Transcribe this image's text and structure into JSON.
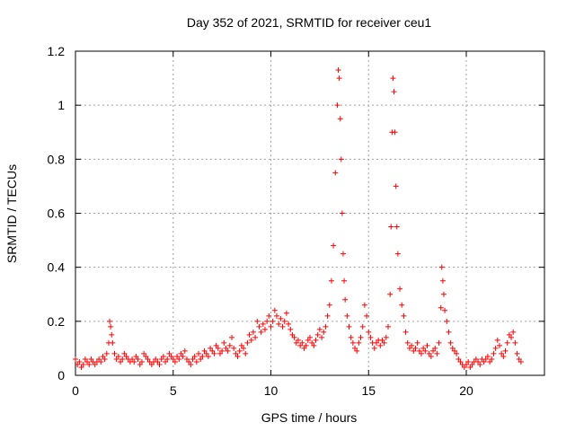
{
  "chart_data": {
    "type": "scatter",
    "title": "Day 352 of 2021, SRMTID for receiver ceu1",
    "xlabel": "GPS time / hours",
    "ylabel": "SRMTID / TECUs",
    "xlim": [
      0,
      24
    ],
    "ylim": [
      0,
      1.2
    ],
    "grid": true,
    "x_ticks": [
      0,
      5,
      10,
      15,
      20
    ],
    "x_tick_labels": [
      "0",
      "5",
      "10",
      "15",
      "20"
    ],
    "y_ticks": [
      0,
      0.2,
      0.4,
      0.6,
      0.8,
      1.0,
      1.2
    ],
    "y_tick_labels": [
      "0",
      "0.2",
      "0.4",
      "0.6",
      "0.8",
      "1",
      "1.2"
    ],
    "marker": "+",
    "colors": {
      "series": "#ff0000",
      "grid": "#a0a0a0",
      "axes": "#000000"
    },
    "series": [
      {
        "name": "SRMTID",
        "points": [
          [
            0.0,
            0.06
          ],
          [
            0.1,
            0.04
          ],
          [
            0.2,
            0.05
          ],
          [
            0.3,
            0.03
          ],
          [
            0.4,
            0.04
          ],
          [
            0.5,
            0.06
          ],
          [
            0.6,
            0.05
          ],
          [
            0.7,
            0.04
          ],
          [
            0.8,
            0.06
          ],
          [
            0.9,
            0.05
          ],
          [
            1.0,
            0.04
          ],
          [
            1.1,
            0.05
          ],
          [
            1.2,
            0.06
          ],
          [
            1.3,
            0.05
          ],
          [
            1.4,
            0.07
          ],
          [
            1.5,
            0.06
          ],
          [
            1.6,
            0.08
          ],
          [
            1.7,
            0.12
          ],
          [
            1.75,
            0.2
          ],
          [
            1.8,
            0.18
          ],
          [
            1.85,
            0.15
          ],
          [
            1.9,
            0.12
          ],
          [
            2.0,
            0.08
          ],
          [
            2.1,
            0.06
          ],
          [
            2.2,
            0.07
          ],
          [
            2.3,
            0.05
          ],
          [
            2.4,
            0.06
          ],
          [
            2.5,
            0.08
          ],
          [
            2.6,
            0.07
          ],
          [
            2.7,
            0.06
          ],
          [
            2.8,
            0.05
          ],
          [
            2.9,
            0.06
          ],
          [
            3.0,
            0.05
          ],
          [
            3.1,
            0.07
          ],
          [
            3.2,
            0.06
          ],
          [
            3.3,
            0.04
          ],
          [
            3.4,
            0.05
          ],
          [
            3.5,
            0.08
          ],
          [
            3.6,
            0.07
          ],
          [
            3.7,
            0.06
          ],
          [
            3.8,
            0.05
          ],
          [
            3.9,
            0.04
          ],
          [
            4.0,
            0.05
          ],
          [
            4.1,
            0.06
          ],
          [
            4.2,
            0.05
          ],
          [
            4.3,
            0.04
          ],
          [
            4.4,
            0.06
          ],
          [
            4.5,
            0.07
          ],
          [
            4.6,
            0.05
          ],
          [
            4.7,
            0.06
          ],
          [
            4.8,
            0.08
          ],
          [
            4.9,
            0.07
          ],
          [
            5.0,
            0.06
          ],
          [
            5.1,
            0.05
          ],
          [
            5.2,
            0.07
          ],
          [
            5.3,
            0.06
          ],
          [
            5.4,
            0.08
          ],
          [
            5.5,
            0.07
          ],
          [
            5.6,
            0.09
          ],
          [
            5.7,
            0.06
          ],
          [
            5.8,
            0.05
          ],
          [
            5.9,
            0.04
          ],
          [
            6.0,
            0.06
          ],
          [
            6.1,
            0.07
          ],
          [
            6.2,
            0.05
          ],
          [
            6.3,
            0.08
          ],
          [
            6.4,
            0.06
          ],
          [
            6.5,
            0.07
          ],
          [
            6.6,
            0.09
          ],
          [
            6.7,
            0.08
          ],
          [
            6.8,
            0.07
          ],
          [
            6.9,
            0.1
          ],
          [
            7.0,
            0.09
          ],
          [
            7.1,
            0.08
          ],
          [
            7.2,
            0.11
          ],
          [
            7.3,
            0.1
          ],
          [
            7.4,
            0.08
          ],
          [
            7.5,
            0.09
          ],
          [
            7.6,
            0.12
          ],
          [
            7.7,
            0.1
          ],
          [
            7.8,
            0.09
          ],
          [
            7.9,
            0.11
          ],
          [
            8.0,
            0.14
          ],
          [
            8.1,
            0.1
          ],
          [
            8.2,
            0.08
          ],
          [
            8.3,
            0.07
          ],
          [
            8.4,
            0.09
          ],
          [
            8.5,
            0.11
          ],
          [
            8.6,
            0.1
          ],
          [
            8.7,
            0.08
          ],
          [
            8.8,
            0.12
          ],
          [
            8.9,
            0.15
          ],
          [
            9.0,
            0.13
          ],
          [
            9.1,
            0.16
          ],
          [
            9.2,
            0.14
          ],
          [
            9.3,
            0.2
          ],
          [
            9.4,
            0.18
          ],
          [
            9.5,
            0.16
          ],
          [
            9.6,
            0.19
          ],
          [
            9.7,
            0.17
          ],
          [
            9.8,
            0.2
          ],
          [
            9.9,
            0.22
          ],
          [
            10.0,
            0.18
          ],
          [
            10.1,
            0.2
          ],
          [
            10.2,
            0.24
          ],
          [
            10.3,
            0.22
          ],
          [
            10.4,
            0.19
          ],
          [
            10.5,
            0.21
          ],
          [
            10.6,
            0.18
          ],
          [
            10.7,
            0.2
          ],
          [
            10.8,
            0.23
          ],
          [
            10.9,
            0.19
          ],
          [
            11.0,
            0.17
          ],
          [
            11.1,
            0.15
          ],
          [
            11.2,
            0.14
          ],
          [
            11.3,
            0.12
          ],
          [
            11.4,
            0.13
          ],
          [
            11.5,
            0.11
          ],
          [
            11.6,
            0.12
          ],
          [
            11.7,
            0.1
          ],
          [
            11.8,
            0.11
          ],
          [
            11.9,
            0.13
          ],
          [
            12.0,
            0.14
          ],
          [
            12.1,
            0.12
          ],
          [
            12.2,
            0.11
          ],
          [
            12.3,
            0.13
          ],
          [
            12.4,
            0.15
          ],
          [
            12.5,
            0.17
          ],
          [
            12.6,
            0.14
          ],
          [
            12.7,
            0.16
          ],
          [
            12.8,
            0.18
          ],
          [
            12.9,
            0.22
          ],
          [
            13.0,
            0.26
          ],
          [
            13.1,
            0.35
          ],
          [
            13.2,
            0.48
          ],
          [
            13.3,
            0.75
          ],
          [
            13.4,
            1.0
          ],
          [
            13.45,
            1.13
          ],
          [
            13.5,
            1.1
          ],
          [
            13.55,
            0.95
          ],
          [
            13.6,
            0.8
          ],
          [
            13.65,
            0.6
          ],
          [
            13.7,
            0.45
          ],
          [
            13.75,
            0.35
          ],
          [
            13.8,
            0.28
          ],
          [
            13.9,
            0.22
          ],
          [
            14.0,
            0.18
          ],
          [
            14.1,
            0.14
          ],
          [
            14.2,
            0.12
          ],
          [
            14.3,
            0.1
          ],
          [
            14.4,
            0.09
          ],
          [
            14.5,
            0.12
          ],
          [
            14.6,
            0.14
          ],
          [
            14.7,
            0.18
          ],
          [
            14.8,
            0.26
          ],
          [
            14.9,
            0.22
          ],
          [
            15.0,
            0.16
          ],
          [
            15.1,
            0.14
          ],
          [
            15.2,
            0.12
          ],
          [
            15.3,
            0.1
          ],
          [
            15.4,
            0.12
          ],
          [
            15.5,
            0.13
          ],
          [
            15.6,
            0.11
          ],
          [
            15.7,
            0.13
          ],
          [
            15.8,
            0.12
          ],
          [
            15.9,
            0.14
          ],
          [
            16.0,
            0.18
          ],
          [
            16.1,
            0.3
          ],
          [
            16.15,
            0.55
          ],
          [
            16.2,
            0.9
          ],
          [
            16.25,
            1.1
          ],
          [
            16.3,
            1.05
          ],
          [
            16.35,
            0.9
          ],
          [
            16.4,
            0.7
          ],
          [
            16.45,
            0.55
          ],
          [
            16.5,
            0.45
          ],
          [
            16.6,
            0.32
          ],
          [
            16.7,
            0.26
          ],
          [
            16.8,
            0.22
          ],
          [
            16.9,
            0.16
          ],
          [
            17.0,
            0.12
          ],
          [
            17.1,
            0.1
          ],
          [
            17.2,
            0.11
          ],
          [
            17.3,
            0.09
          ],
          [
            17.4,
            0.1
          ],
          [
            17.5,
            0.12
          ],
          [
            17.6,
            0.09
          ],
          [
            17.7,
            0.08
          ],
          [
            17.8,
            0.1
          ],
          [
            17.9,
            0.09
          ],
          [
            18.0,
            0.11
          ],
          [
            18.1,
            0.08
          ],
          [
            18.2,
            0.07
          ],
          [
            18.3,
            0.09
          ],
          [
            18.4,
            0.1
          ],
          [
            18.5,
            0.08
          ],
          [
            18.6,
            0.12
          ],
          [
            18.7,
            0.25
          ],
          [
            18.75,
            0.4
          ],
          [
            18.8,
            0.35
          ],
          [
            18.85,
            0.3
          ],
          [
            18.9,
            0.24
          ],
          [
            19.0,
            0.2
          ],
          [
            19.1,
            0.16
          ],
          [
            19.2,
            0.12
          ],
          [
            19.3,
            0.1
          ],
          [
            19.4,
            0.09
          ],
          [
            19.5,
            0.08
          ],
          [
            19.6,
            0.06
          ],
          [
            19.7,
            0.05
          ],
          [
            19.8,
            0.04
          ],
          [
            19.9,
            0.03
          ],
          [
            20.0,
            0.04
          ],
          [
            20.1,
            0.05
          ],
          [
            20.2,
            0.03
          ],
          [
            20.3,
            0.04
          ],
          [
            20.4,
            0.05
          ],
          [
            20.5,
            0.06
          ],
          [
            20.6,
            0.05
          ],
          [
            20.7,
            0.04
          ],
          [
            20.8,
            0.06
          ],
          [
            20.9,
            0.05
          ],
          [
            21.0,
            0.06
          ],
          [
            21.1,
            0.07
          ],
          [
            21.2,
            0.05
          ],
          [
            21.3,
            0.06
          ],
          [
            21.4,
            0.08
          ],
          [
            21.5,
            0.1
          ],
          [
            21.6,
            0.13
          ],
          [
            21.7,
            0.11
          ],
          [
            21.8,
            0.08
          ],
          [
            21.9,
            0.07
          ],
          [
            22.0,
            0.09
          ],
          [
            22.1,
            0.12
          ],
          [
            22.2,
            0.15
          ],
          [
            22.3,
            0.14
          ],
          [
            22.4,
            0.16
          ],
          [
            22.5,
            0.12
          ],
          [
            22.6,
            0.08
          ],
          [
            22.7,
            0.06
          ],
          [
            22.8,
            0.05
          ]
        ]
      }
    ]
  }
}
